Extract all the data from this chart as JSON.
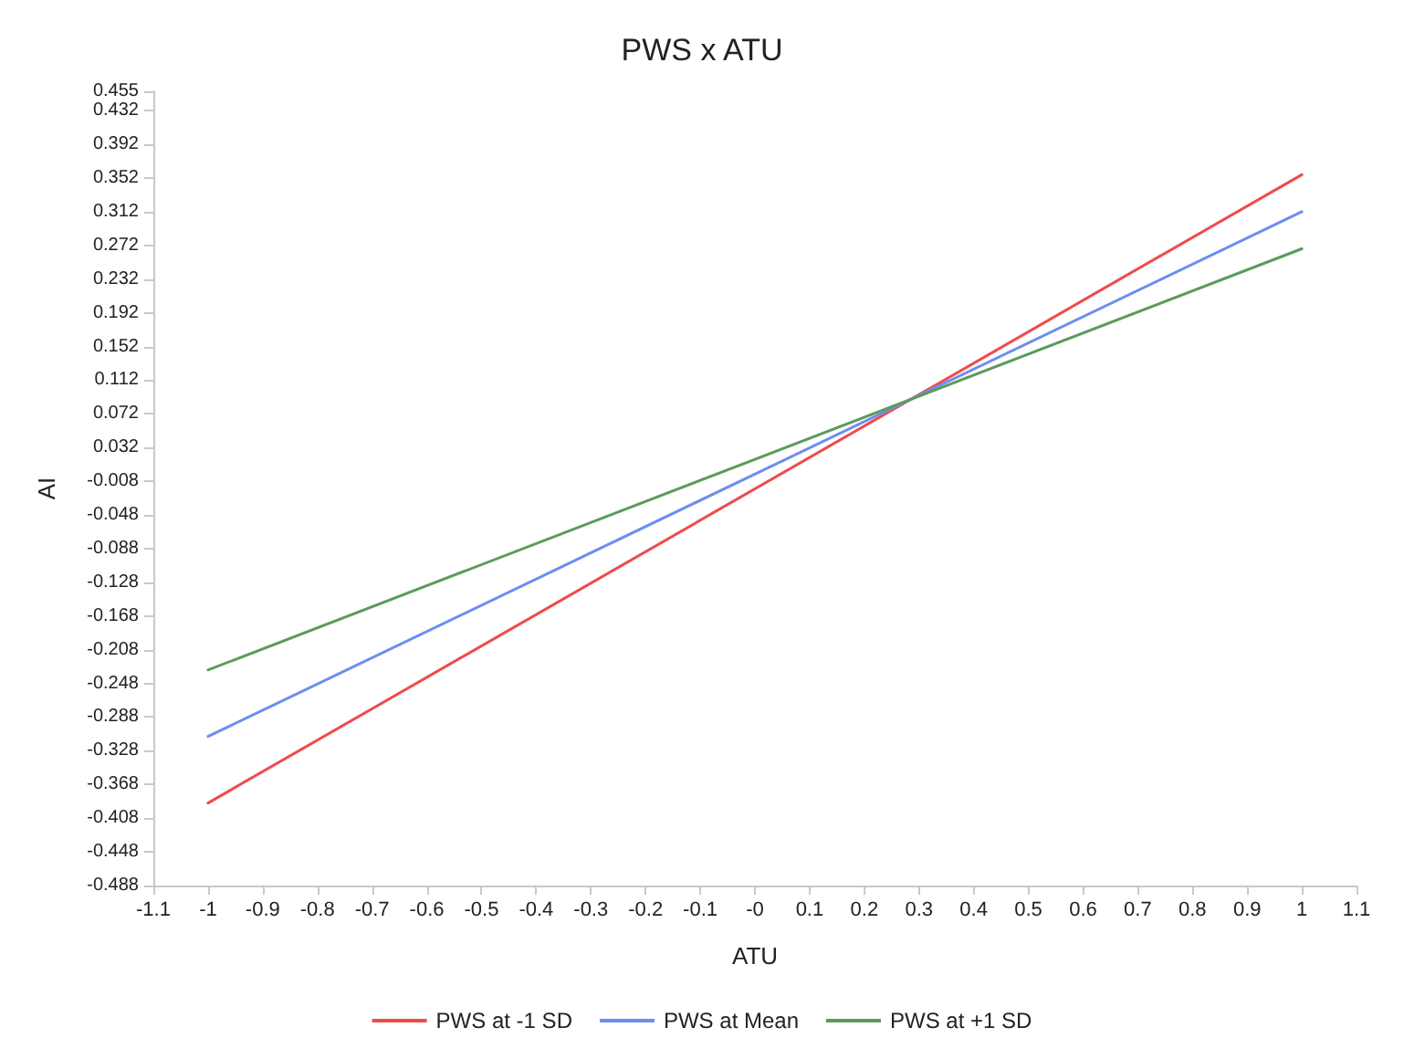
{
  "chart_data": {
    "type": "line",
    "title": "PWS x ATU",
    "xlabel": "ATU",
    "ylabel": "AI",
    "x": [
      -1,
      1
    ],
    "series": [
      {
        "name": "PWS at -1 SD",
        "color": "#ef4b4b",
        "values": [
          -0.39,
          0.356
        ]
      },
      {
        "name": "PWS at Mean",
        "color": "#6b8ef0",
        "values": [
          -0.311,
          0.312
        ]
      },
      {
        "name": "PWS at +1 SD",
        "color": "#5c9a5c",
        "values": [
          -0.232,
          0.268
        ]
      }
    ],
    "xlim": [
      -1.1,
      1.1
    ],
    "xticks": [
      -1.1,
      -1,
      -0.9,
      -0.8,
      -0.7,
      -0.6,
      -0.5,
      -0.4,
      -0.3,
      -0.2,
      -0.1,
      {
        "value": 0,
        "label": "-0"
      },
      0.1,
      0.2,
      0.3,
      0.4,
      0.5,
      0.6,
      0.7,
      0.8,
      0.9,
      1,
      1.1
    ],
    "ylim": [
      -0.488,
      0.455
    ],
    "yticks": [
      -0.488,
      -0.448,
      -0.408,
      -0.368,
      -0.328,
      -0.288,
      -0.248,
      -0.208,
      -0.168,
      -0.128,
      -0.088,
      -0.048,
      -0.008,
      0.032,
      0.072,
      0.112,
      0.152,
      0.192,
      0.232,
      0.272,
      0.312,
      0.352,
      0.392,
      0.432,
      0.455
    ],
    "grid": false,
    "legend": "bottom",
    "marker": "none",
    "line_style": "solid"
  }
}
